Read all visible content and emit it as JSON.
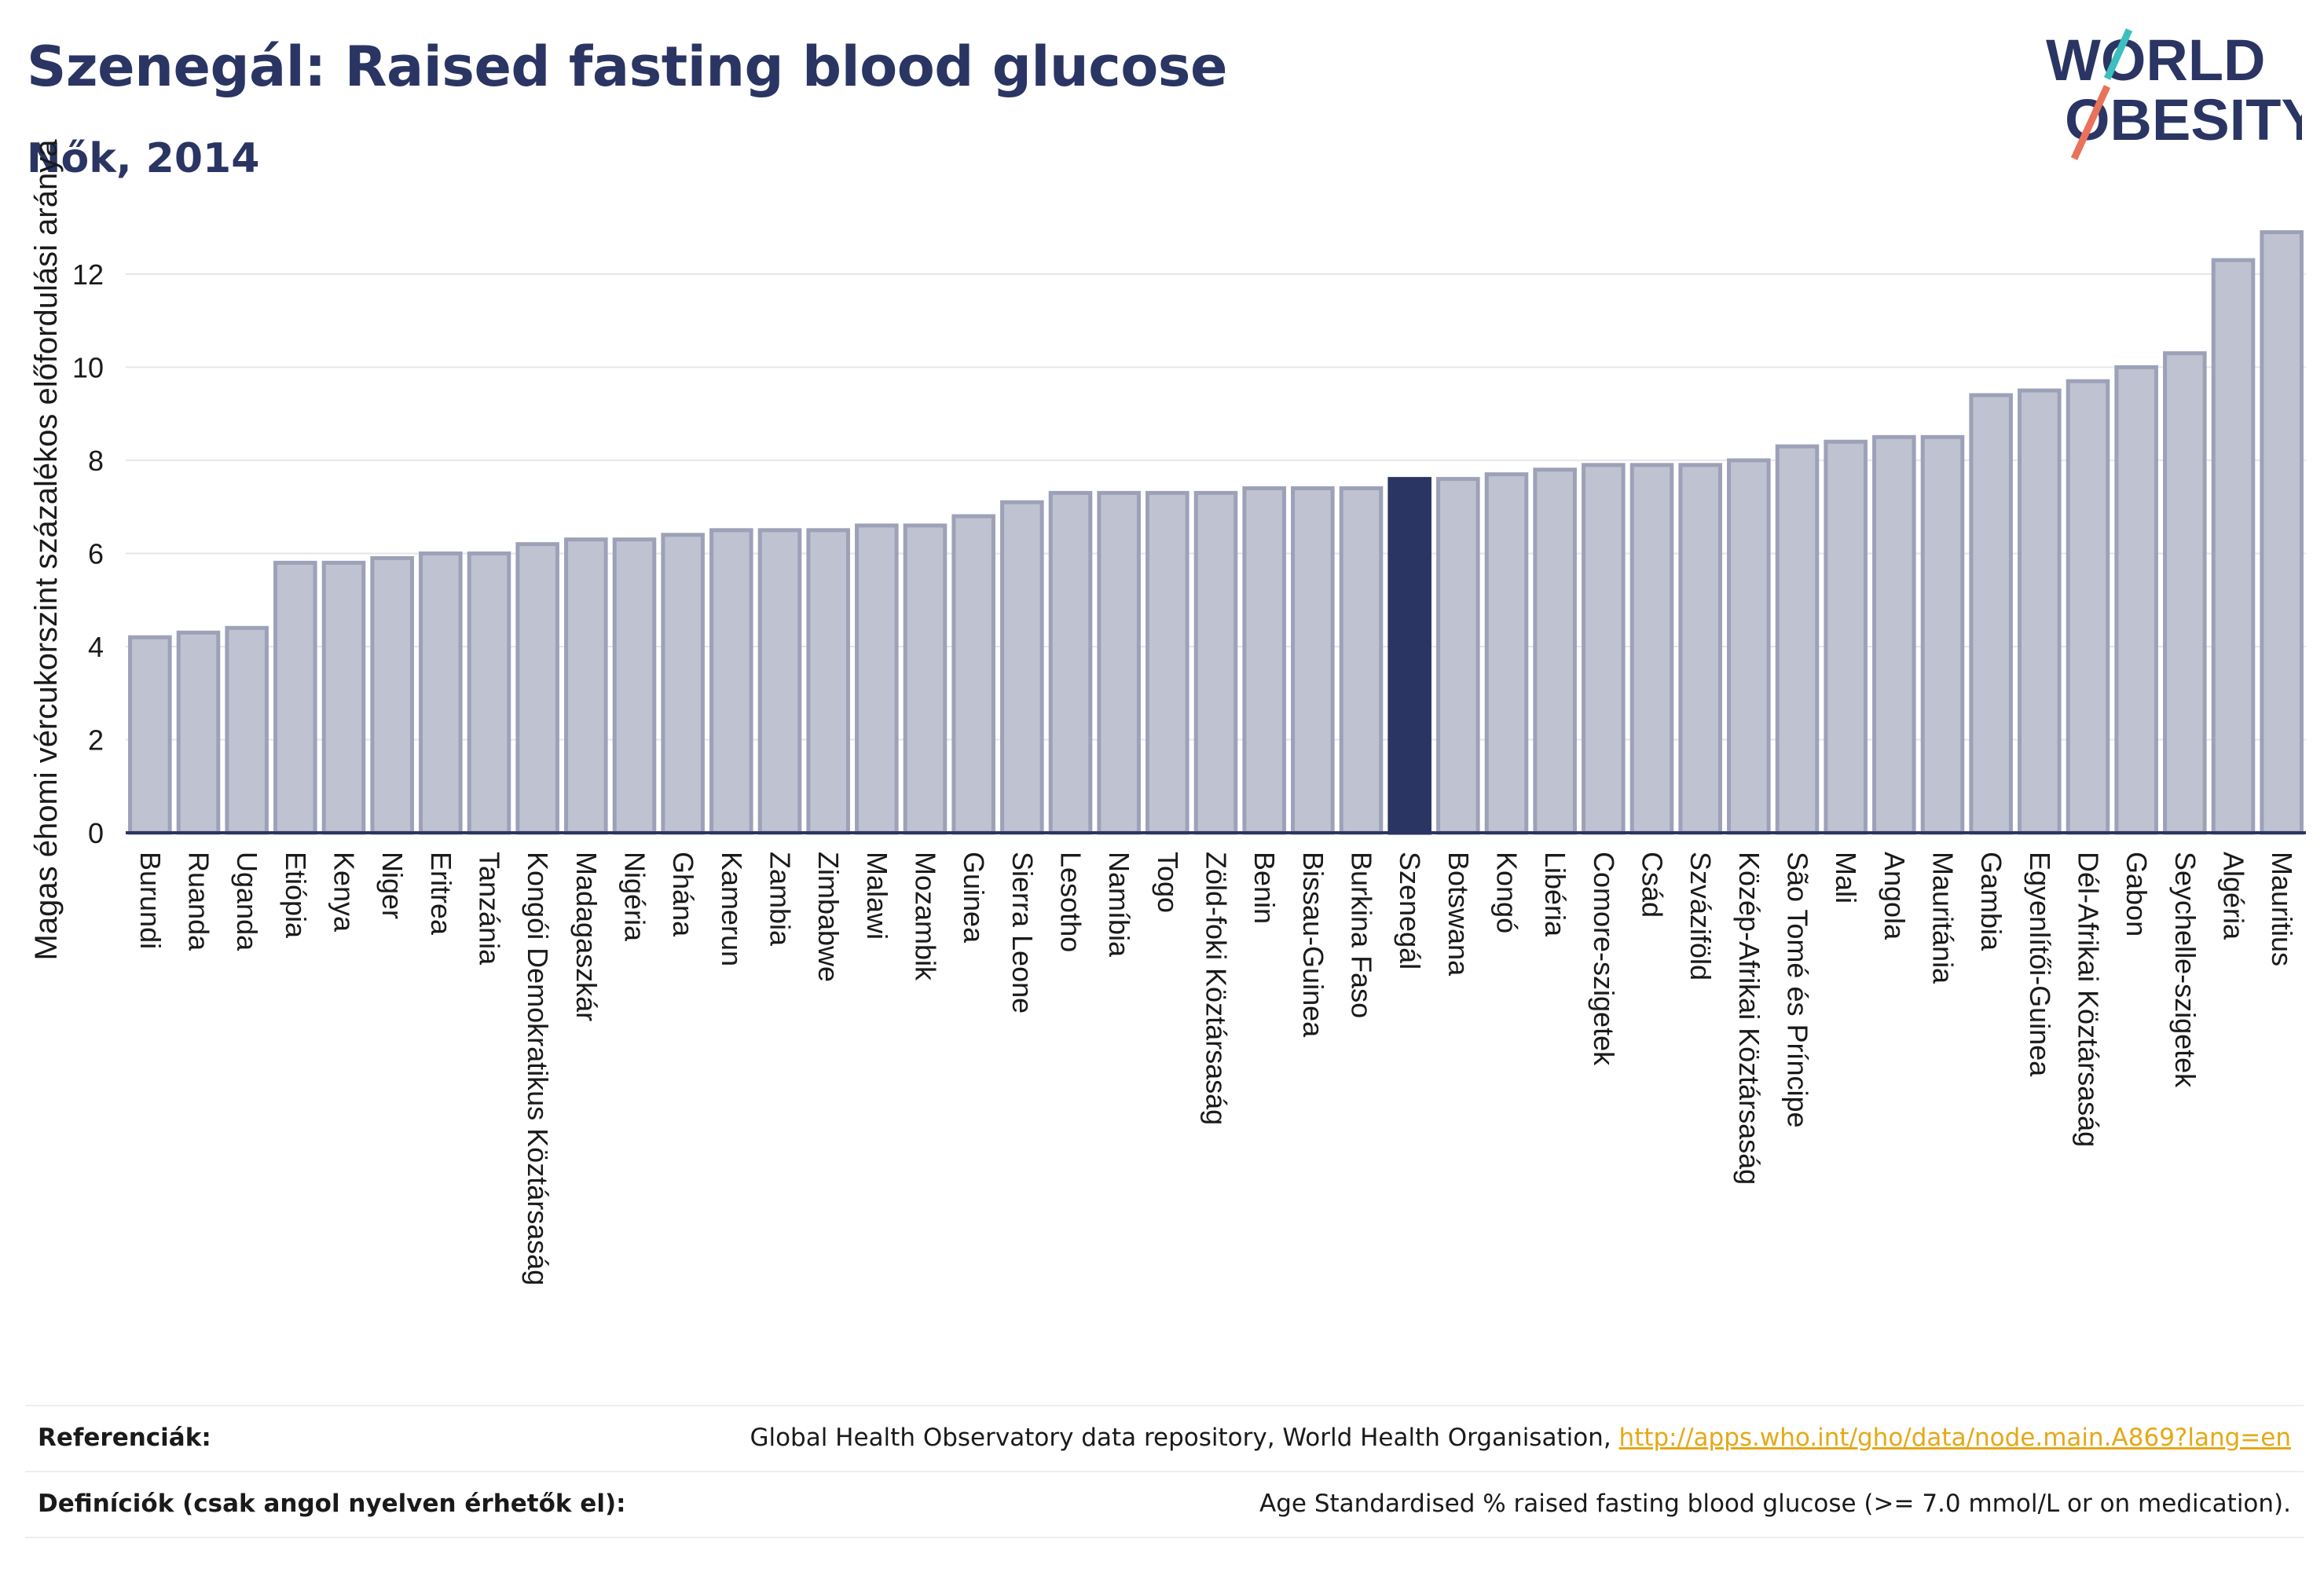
{
  "header": {
    "title": "Szenegál: Raised fasting blood glucose",
    "subtitle": "Nők, 2014"
  },
  "logo": {
    "line1": "WORLD",
    "line2": "OBESITY",
    "colors": {
      "text": "#2b3563",
      "slash_top": "#3dbfbf",
      "slash_bottom": "#e8735a"
    }
  },
  "colors": {
    "bar": "#bfc2d0",
    "bar_stroke": "#9da1b8",
    "highlight": "#2b3563",
    "grid": "#e6e6e6",
    "axis": "#2b3563"
  },
  "chart_data": {
    "type": "bar",
    "title": "Szenegál: Raised fasting blood glucose",
    "subtitle": "Nők, 2014",
    "ylabel": "Magas éhomi vércukorszint százalékos előfordulási aránya",
    "xlabel": "",
    "ylim": [
      0,
      13.5
    ],
    "yticks": [
      0,
      2,
      4,
      6,
      8,
      10,
      12
    ],
    "grid": true,
    "highlight": "Szenegál",
    "categories": [
      "Burundi",
      "Ruanda",
      "Uganda",
      "Etiópia",
      "Kenya",
      "Niger",
      "Eritrea",
      "Tanzánia",
      "Kongói Demokratikus Köztársaság",
      "Madagaszkár",
      "Nigéria",
      "Ghána",
      "Kamerun",
      "Zambia",
      "Zimbabwe",
      "Malawi",
      "Mozambik",
      "Guinea",
      "Sierra Leone",
      "Lesotho",
      "Namíbia",
      "Togo",
      "Zöld-foki Köztársaság",
      "Benin",
      "Bissau-Guinea",
      "Burkina Faso",
      "Szenegál",
      "Botswana",
      "Kongó",
      "Libéria",
      "Comore-szigetek",
      "Csád",
      "Szváziföld",
      "Közép-Afrikai Köztársaság",
      "São Tomé és Príncipe",
      "Mali",
      "Angola",
      "Mauritánia",
      "Gambia",
      "Egyenlítői-Guinea",
      "Dél-Afrikai Köztársaság",
      "Gabon",
      "Seychelle-szigetek",
      "Algéria",
      "Mauritius"
    ],
    "values": [
      4.2,
      4.3,
      4.4,
      5.8,
      5.8,
      5.9,
      6.0,
      6.0,
      6.2,
      6.3,
      6.3,
      6.4,
      6.5,
      6.5,
      6.5,
      6.6,
      6.6,
      6.8,
      7.1,
      7.3,
      7.3,
      7.3,
      7.3,
      7.4,
      7.4,
      7.4,
      7.6,
      7.6,
      7.7,
      7.8,
      7.9,
      7.9,
      7.9,
      8.0,
      8.3,
      8.4,
      8.5,
      8.5,
      9.4,
      9.5,
      9.7,
      10.0,
      10.3,
      12.3,
      12.9
    ]
  },
  "references": {
    "sources_label": "Referenciák:",
    "sources_text": "Global Health Observatory data repository, World Health Organisation, ",
    "sources_link": "http://apps.who.int/gho/data/node.main.A869?lang=en",
    "definitions_label": "Definíciók (csak angol nyelven érhetők el):",
    "definitions_text": "Age Standardised % raised fasting blood glucose (>= 7.0 mmol/L or on medication)."
  }
}
